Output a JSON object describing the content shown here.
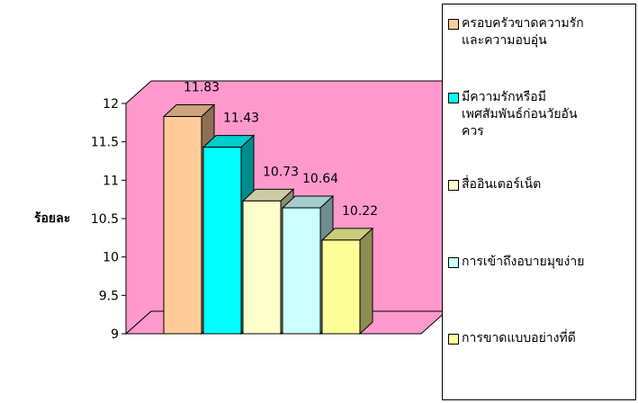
{
  "chart_data": {
    "type": "bar",
    "ylabel": "ร้อยละ",
    "ylim": [
      9,
      12
    ],
    "yticks": [
      "12",
      "11.5",
      "11",
      "10.5",
      "10",
      "9.5",
      "9"
    ],
    "series": [
      {
        "name": "ครอบครัวขาดความรัก\nและความอบอุ่น",
        "value": 11.83,
        "label": "11.83",
        "color": "#ffcc99"
      },
      {
        "name": "มีความรักหรือมี\nเพศสัมพันธ์ก่อนวัยอัน\nควร",
        "value": 11.43,
        "label": "11.43",
        "color": "#00ffff"
      },
      {
        "name": "สื่ออินเตอร์เน็ต",
        "value": 10.73,
        "label": "10.73",
        "color": "#ffffcc"
      },
      {
        "name": "การเข้าถึงอบายมุขง่าย",
        "value": 10.64,
        "label": "10.64",
        "color": "#ccffff"
      },
      {
        "name": "การขาดแบบอย่างที่ดี",
        "value": 10.22,
        "label": "10.22",
        "color": "#ffff99"
      }
    ],
    "wall_color": "#ff99cc",
    "legend_position": "right"
  }
}
